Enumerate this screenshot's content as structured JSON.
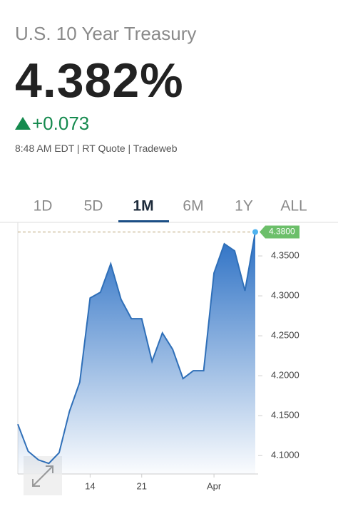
{
  "header": {
    "title": "U.S. 10 Year Treasury",
    "price": "4.382%",
    "change": "+0.073",
    "meta": "8:48 AM EDT | RT Quote | Tradeweb"
  },
  "tabs": [
    "1D",
    "5D",
    "1M",
    "6M",
    "1Y",
    "ALL"
  ],
  "selected_tab": 2,
  "chart_data": {
    "type": "area",
    "categories": [
      null,
      null,
      null,
      null,
      null,
      null,
      null,
      "14",
      null,
      null,
      null,
      null,
      "21",
      null,
      null,
      null,
      null,
      null,
      null,
      "Apr",
      null,
      null,
      null,
      null
    ],
    "values": [
      4.1393,
      4.1054,
      4.0946,
      4.0902,
      4.1036,
      4.1554,
      4.192,
      4.2973,
      4.3045,
      4.3402,
      4.2955,
      4.2714,
      4.2714,
      4.2179,
      4.2536,
      4.233,
      4.1964,
      4.2063,
      4.2063,
      4.3286,
      4.3652,
      4.3563,
      4.3063,
      4.38
    ],
    "color": "#2f6fb8",
    "current": {
      "value": 4.38,
      "label": "4.3800"
    },
    "ylim": [
      4.077,
      4.392
    ],
    "yticks": [
      {
        "value": 4.1,
        "label": "4.1000"
      },
      {
        "value": 4.15,
        "label": "4.1500"
      },
      {
        "value": 4.2,
        "label": "4.2000"
      },
      {
        "value": 4.25,
        "label": "4.2500"
      },
      {
        "value": 4.3,
        "label": "4.3000"
      },
      {
        "value": 4.35,
        "label": "4.3500"
      }
    ]
  }
}
